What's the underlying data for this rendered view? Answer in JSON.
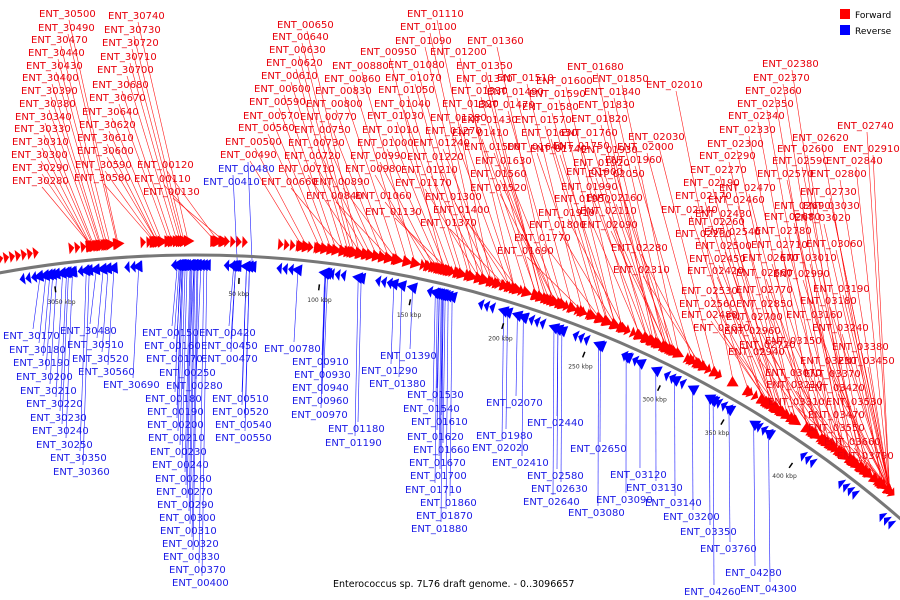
{
  "caption": "Enterococcus sp. 7L76 draft genome. - 0..3096657",
  "legend": [
    {
      "label": "Forward",
      "color": "#ff0000"
    },
    {
      "label": "Reverse",
      "color": "#0000ff"
    }
  ],
  "colors": {
    "forward": "#ff0000",
    "reverse": "#0000ff",
    "forward_label": "#e8000b",
    "reverse_label": "#1a1ae6",
    "backbone": "#777777"
  },
  "genome": {
    "name": "Enterococcus sp. 7L76 draft genome.",
    "start": 0,
    "end": 3096657
  },
  "scale_ticks": [
    "3050 kbp",
    "50 kbp",
    "100 kbp",
    "150 kbp",
    "200 kbp",
    "250 kbp",
    "300 kbp",
    "350 kbp",
    "400 kbp"
  ],
  "forward_labels": [
    "ENT_30500",
    "ENT_30490",
    "ENT_30470",
    "ENT_30440",
    "ENT_30430",
    "ENT_30400",
    "ENT_30390",
    "ENT_30380",
    "ENT_30340",
    "ENT_30330",
    "ENT_30310",
    "ENT_30300",
    "ENT_30290",
    "ENT_30280",
    "ENT_30740",
    "ENT_30730",
    "ENT_30720",
    "ENT_30710",
    "ENT_30700",
    "ENT_30680",
    "ENT_30670",
    "ENT_30640",
    "ENT_30620",
    "ENT_30610",
    "ENT_30600",
    "ENT_30590",
    "ENT_30580",
    "ENT_00120",
    "ENT_00110",
    "ENT_00130",
    "ENT_00650",
    "ENT_00640",
    "ENT_00630",
    "ENT_00620",
    "ENT_00610",
    "ENT_00600",
    "ENT_00590",
    "ENT_00570",
    "ENT_00560",
    "ENT_00500",
    "ENT_00490",
    "ENT_00660",
    "ENT_00950",
    "ENT_00880",
    "ENT_00860",
    "ENT_00830",
    "ENT_00800",
    "ENT_00770",
    "ENT_00750",
    "ENT_00730",
    "ENT_00720",
    "ENT_00710",
    "ENT_00890",
    "ENT_00840",
    "ENT_01110",
    "ENT_01100",
    "ENT_01090",
    "ENT_01080",
    "ENT_01070",
    "ENT_01050",
    "ENT_01040",
    "ENT_01030",
    "ENT_01010",
    "ENT_01000",
    "ENT_00990",
    "ENT_00980",
    "ENT_01060",
    "ENT_01130",
    "ENT_01360",
    "ENT_01200",
    "ENT_01350",
    "ENT_01340",
    "ENT_01330",
    "ENT_01320",
    "ENT_01280",
    "ENT_01270",
    "ENT_01240",
    "ENT_01220",
    "ENT_01210",
    "ENT_01170",
    "ENT_01300",
    "ENT_01400",
    "ENT_01370",
    "ENT_01510",
    "ENT_01490",
    "ENT_01470",
    "ENT_01430",
    "ENT_01410",
    "ENT_01500",
    "ENT_01630",
    "ENT_01560",
    "ENT_01520",
    "ENT_01680",
    "ENT_01600",
    "ENT_01590",
    "ENT_01580",
    "ENT_01570",
    "ENT_01650",
    "ENT_01640",
    "ENT_01740",
    "ENT_01800",
    "ENT_01770",
    "ENT_01690",
    "ENT_01850",
    "ENT_01840",
    "ENT_01830",
    "ENT_01820",
    "ENT_01760",
    "ENT_01750",
    "ENT_01930",
    "ENT_01920",
    "ENT_01900",
    "ENT_01990",
    "ENT_01950",
    "ENT_01910",
    "ENT_02010",
    "ENT_02030",
    "ENT_02000",
    "ENT_01960",
    "ENT_02050",
    "ENT_02160",
    "ENT_02110",
    "ENT_02090",
    "ENT_02380",
    "ENT_02370",
    "ENT_02360",
    "ENT_02350",
    "ENT_02340",
    "ENT_02330",
    "ENT_02300",
    "ENT_02290",
    "ENT_02270",
    "ENT_02190",
    "ENT_02170",
    "ENT_02140",
    "ENT_02260",
    "ENT_02230",
    "ENT_02280",
    "ENT_02310",
    "ENT_02740",
    "ENT_02620",
    "ENT_02600",
    "ENT_02590",
    "ENT_02570",
    "ENT_02470",
    "ENT_02460",
    "ENT_02430",
    "ENT_02540",
    "ENT_02500",
    "ENT_02450",
    "ENT_02420",
    "ENT_02530",
    "ENT_02560",
    "ENT_02480",
    "ENT_02610",
    "ENT_02910",
    "ENT_02840",
    "ENT_02800",
    "ENT_02730",
    "ENT_02690",
    "ENT_02680",
    "ENT_02780",
    "ENT_02710",
    "ENT_02670",
    "ENT_02660",
    "ENT_02770",
    "ENT_02850",
    "ENT_02700",
    "ENT_02960",
    "ENT_02720",
    "ENT_02940",
    "ENT_03030",
    "ENT_03020",
    "ENT_03060",
    "ENT_03010",
    "ENT_02990",
    "ENT_03190",
    "ENT_03180",
    "ENT_03160",
    "ENT_03240",
    "ENT_03150",
    "ENT_03070",
    "ENT_03210",
    "ENT_03380",
    "ENT_03230",
    "ENT_03450",
    "ENT_03370",
    "ENT_03420",
    "ENT_03310",
    "ENT_03530",
    "ENT_03470",
    "ENT_03550",
    "ENT_03660",
    "ENT_03790"
  ],
  "reverse_labels": [
    "ENT_00480",
    "ENT_00410",
    "ENT_30170",
    "ENT_30180",
    "ENT_30190",
    "ENT_30200",
    "ENT_30210",
    "ENT_30220",
    "ENT_30230",
    "ENT_30240",
    "ENT_30250",
    "ENT_30350",
    "ENT_30360",
    "ENT_30480",
    "ENT_30510",
    "ENT_30520",
    "ENT_30560",
    "ENT_30690",
    "ENT_00150",
    "ENT_00160",
    "ENT_00170",
    "ENT_00250",
    "ENT_00280",
    "ENT_00180",
    "ENT_00190",
    "ENT_00200",
    "ENT_00210",
    "ENT_00230",
    "ENT_00240",
    "ENT_00260",
    "ENT_00270",
    "ENT_00290",
    "ENT_00300",
    "ENT_00310",
    "ENT_00320",
    "ENT_00330",
    "ENT_00370",
    "ENT_00400",
    "ENT_00420",
    "ENT_00450",
    "ENT_00470",
    "ENT_00510",
    "ENT_00520",
    "ENT_00540",
    "ENT_00550",
    "ENT_00780",
    "ENT_00910",
    "ENT_00930",
    "ENT_00940",
    "ENT_00960",
    "ENT_00970",
    "ENT_01180",
    "ENT_01190",
    "ENT_01390",
    "ENT_01290",
    "ENT_01380",
    "ENT_01530",
    "ENT_01540",
    "ENT_01610",
    "ENT_01620",
    "ENT_01660",
    "ENT_01670",
    "ENT_01700",
    "ENT_01710",
    "ENT_01860",
    "ENT_01870",
    "ENT_01880",
    "ENT_02070",
    "ENT_01980",
    "ENT_02020",
    "ENT_02410",
    "ENT_02440",
    "ENT_02650",
    "ENT_02580",
    "ENT_02630",
    "ENT_02640",
    "ENT_03080",
    "ENT_03120",
    "ENT_03130",
    "ENT_03090",
    "ENT_03140",
    "ENT_03200",
    "ENT_03350",
    "ENT_03760",
    "ENT_04280",
    "ENT_04260",
    "ENT_04300"
  ]
}
